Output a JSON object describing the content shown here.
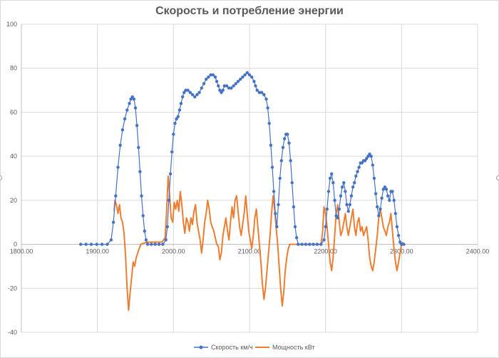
{
  "chart_data": {
    "type": "scatter",
    "title": "Скорость и потребление энергии",
    "xlim": [
      1800,
      2400
    ],
    "ylim": [
      -40,
      100
    ],
    "x_ticks": [
      1800,
      1900,
      2000,
      2100,
      2200,
      2300,
      2400
    ],
    "x_tick_labels": [
      "1800.00",
      "1900.00",
      "2000.00",
      "2100.00",
      "2200.00",
      "2300.00",
      "2400.00"
    ],
    "y_ticks": [
      -40,
      -20,
      0,
      20,
      40,
      60,
      80,
      100
    ],
    "y_tick_labels": [
      "-40",
      "-20",
      "0",
      "20",
      "40",
      "60",
      "80",
      "100"
    ],
    "grid": "vertical and horizontal major gridlines",
    "legend_position": "bottom",
    "series": [
      {
        "name": "Скорость км/ч",
        "style": "line with markers",
        "color": "#4472C4",
        "points": [
          [
            1878,
            0
          ],
          [
            1885,
            0
          ],
          [
            1892,
            0
          ],
          [
            1899,
            0
          ],
          [
            1906,
            0
          ],
          [
            1913,
            0
          ],
          [
            1918,
            2
          ],
          [
            1921,
            10
          ],
          [
            1924,
            22
          ],
          [
            1927,
            35
          ],
          [
            1930,
            45
          ],
          [
            1933,
            52
          ],
          [
            1936,
            57
          ],
          [
            1939,
            61
          ],
          [
            1942,
            64
          ],
          [
            1944,
            66
          ],
          [
            1946,
            67
          ],
          [
            1948,
            66
          ],
          [
            1950,
            62
          ],
          [
            1952,
            54
          ],
          [
            1954,
            44
          ],
          [
            1956,
            33
          ],
          [
            1958,
            22
          ],
          [
            1960,
            13
          ],
          [
            1962,
            6
          ],
          [
            1964,
            2
          ],
          [
            1966,
            0
          ],
          [
            1971,
            0
          ],
          [
            1976,
            0
          ],
          [
            1981,
            0
          ],
          [
            1986,
            0
          ],
          [
            1990,
            2
          ],
          [
            1992,
            8
          ],
          [
            1994,
            20
          ],
          [
            1996,
            32
          ],
          [
            1998,
            42
          ],
          [
            2000,
            50
          ],
          [
            2002,
            55
          ],
          [
            2004,
            57
          ],
          [
            2006,
            58
          ],
          [
            2008,
            61
          ],
          [
            2010,
            64
          ],
          [
            2012,
            67
          ],
          [
            2014,
            69
          ],
          [
            2016,
            70
          ],
          [
            2019,
            70
          ],
          [
            2022,
            69
          ],
          [
            2025,
            68
          ],
          [
            2028,
            67
          ],
          [
            2031,
            68
          ],
          [
            2034,
            69
          ],
          [
            2037,
            71
          ],
          [
            2040,
            73
          ],
          [
            2043,
            75
          ],
          [
            2046,
            76
          ],
          [
            2049,
            77
          ],
          [
            2052,
            77
          ],
          [
            2055,
            76
          ],
          [
            2057,
            74
          ],
          [
            2059,
            72
          ],
          [
            2061,
            70
          ],
          [
            2063,
            69
          ],
          [
            2065,
            70
          ],
          [
            2067,
            72
          ],
          [
            2070,
            72
          ],
          [
            2073,
            71
          ],
          [
            2076,
            71
          ],
          [
            2079,
            72
          ],
          [
            2082,
            73
          ],
          [
            2085,
            74
          ],
          [
            2088,
            75
          ],
          [
            2091,
            76
          ],
          [
            2094,
            77
          ],
          [
            2097,
            78
          ],
          [
            2100,
            77
          ],
          [
            2103,
            76
          ],
          [
            2106,
            74
          ],
          [
            2108,
            72
          ],
          [
            2110,
            70
          ],
          [
            2113,
            69
          ],
          [
            2116,
            69
          ],
          [
            2119,
            68
          ],
          [
            2122,
            66
          ],
          [
            2124,
            62
          ],
          [
            2126,
            55
          ],
          [
            2128,
            45
          ],
          [
            2130,
            35
          ],
          [
            2132,
            24
          ],
          [
            2134,
            14
          ],
          [
            2136,
            8
          ],
          [
            2138,
            18
          ],
          [
            2140,
            30
          ],
          [
            2142,
            38
          ],
          [
            2144,
            44
          ],
          [
            2146,
            48
          ],
          [
            2148,
            50
          ],
          [
            2150,
            50
          ],
          [
            2152,
            46
          ],
          [
            2154,
            38
          ],
          [
            2156,
            28
          ],
          [
            2158,
            17
          ],
          [
            2160,
            8
          ],
          [
            2162,
            3
          ],
          [
            2164,
            0
          ],
          [
            2169,
            0
          ],
          [
            2174,
            0
          ],
          [
            2179,
            0
          ],
          [
            2184,
            0
          ],
          [
            2189,
            0
          ],
          [
            2194,
            0
          ],
          [
            2198,
            2
          ],
          [
            2200,
            8
          ],
          [
            2202,
            16
          ],
          [
            2204,
            24
          ],
          [
            2206,
            30
          ],
          [
            2208,
            32
          ],
          [
            2210,
            28
          ],
          [
            2212,
            20
          ],
          [
            2214,
            13
          ],
          [
            2216,
            12
          ],
          [
            2218,
            16
          ],
          [
            2220,
            22
          ],
          [
            2222,
            26
          ],
          [
            2224,
            28
          ],
          [
            2226,
            24
          ],
          [
            2228,
            18
          ],
          [
            2230,
            15
          ],
          [
            2232,
            18
          ],
          [
            2234,
            22
          ],
          [
            2236,
            26
          ],
          [
            2238,
            28
          ],
          [
            2240,
            31
          ],
          [
            2242,
            33
          ],
          [
            2244,
            35
          ],
          [
            2246,
            37
          ],
          [
            2248,
            37
          ],
          [
            2250,
            38
          ],
          [
            2252,
            38
          ],
          [
            2254,
            39
          ],
          [
            2256,
            40
          ],
          [
            2258,
            41
          ],
          [
            2260,
            40
          ],
          [
            2262,
            36
          ],
          [
            2264,
            30
          ],
          [
            2266,
            23
          ],
          [
            2268,
            17
          ],
          [
            2270,
            13
          ],
          [
            2272,
            16
          ],
          [
            2274,
            21
          ],
          [
            2276,
            25
          ],
          [
            2278,
            26
          ],
          [
            2280,
            25
          ],
          [
            2282,
            22
          ],
          [
            2284,
            20
          ],
          [
            2286,
            24
          ],
          [
            2288,
            24
          ],
          [
            2290,
            20
          ],
          [
            2292,
            14
          ],
          [
            2294,
            8
          ],
          [
            2296,
            4
          ],
          [
            2298,
            1
          ],
          [
            2300,
            0
          ],
          [
            2303,
            0
          ]
        ]
      },
      {
        "name": "Мощность кВт",
        "style": "line",
        "color": "#ED7D31",
        "points": [
          [
            1922,
            15
          ],
          [
            1923,
            20
          ],
          [
            1925,
            18
          ],
          [
            1927,
            14
          ],
          [
            1929,
            18
          ],
          [
            1931,
            12
          ],
          [
            1933,
            10
          ],
          [
            1935,
            5
          ],
          [
            1937,
            -5
          ],
          [
            1939,
            -20
          ],
          [
            1941,
            -30
          ],
          [
            1943,
            -22
          ],
          [
            1945,
            -15
          ],
          [
            1947,
            -8
          ],
          [
            1949,
            -10
          ],
          [
            1951,
            -6
          ],
          [
            1953,
            -4
          ],
          [
            1955,
            -2
          ],
          [
            1957,
            0
          ],
          [
            1965,
            1
          ],
          [
            1975,
            1
          ],
          [
            1985,
            1
          ],
          [
            1989,
            3
          ],
          [
            1991,
            15
          ],
          [
            1993,
            31
          ],
          [
            1995,
            22
          ],
          [
            1997,
            12
          ],
          [
            1999,
            10
          ],
          [
            2001,
            19
          ],
          [
            2003,
            16
          ],
          [
            2005,
            20
          ],
          [
            2007,
            15
          ],
          [
            2009,
            24
          ],
          [
            2011,
            18
          ],
          [
            2013,
            10
          ],
          [
            2015,
            5
          ],
          [
            2017,
            12
          ],
          [
            2019,
            10
          ],
          [
            2021,
            6
          ],
          [
            2023,
            12
          ],
          [
            2025,
            9
          ],
          [
            2027,
            15
          ],
          [
            2029,
            18
          ],
          [
            2031,
            10
          ],
          [
            2033,
            6
          ],
          [
            2035,
            2
          ],
          [
            2037,
            -4
          ],
          [
            2039,
            2
          ],
          [
            2041,
            10
          ],
          [
            2043,
            14
          ],
          [
            2045,
            20
          ],
          [
            2047,
            16
          ],
          [
            2049,
            10
          ],
          [
            2051,
            8
          ],
          [
            2053,
            6
          ],
          [
            2055,
            3
          ],
          [
            2057,
            0
          ],
          [
            2059,
            -1
          ],
          [
            2061,
            -7
          ],
          [
            2063,
            -4
          ],
          [
            2065,
            4
          ],
          [
            2067,
            8
          ],
          [
            2069,
            12
          ],
          [
            2071,
            6
          ],
          [
            2073,
            2
          ],
          [
            2075,
            10
          ],
          [
            2077,
            17
          ],
          [
            2079,
            12
          ],
          [
            2081,
            20
          ],
          [
            2083,
            22
          ],
          [
            2085,
            15
          ],
          [
            2087,
            8
          ],
          [
            2089,
            4
          ],
          [
            2091,
            9
          ],
          [
            2093,
            14
          ],
          [
            2095,
            22
          ],
          [
            2097,
            14
          ],
          [
            2099,
            6
          ],
          [
            2101,
            2
          ],
          [
            2103,
            -2
          ],
          [
            2105,
            4
          ],
          [
            2107,
            12
          ],
          [
            2109,
            16
          ],
          [
            2111,
            8
          ],
          [
            2113,
            0
          ],
          [
            2115,
            -8
          ],
          [
            2117,
            -18
          ],
          [
            2119,
            -25
          ],
          [
            2121,
            -20
          ],
          [
            2123,
            -12
          ],
          [
            2125,
            -4
          ],
          [
            2127,
            4
          ],
          [
            2129,
            14
          ],
          [
            2131,
            22
          ],
          [
            2133,
            16
          ],
          [
            2135,
            8
          ],
          [
            2137,
            0
          ],
          [
            2139,
            -10
          ],
          [
            2141,
            -20
          ],
          [
            2143,
            -28
          ],
          [
            2145,
            -22
          ],
          [
            2147,
            -12
          ],
          [
            2149,
            -6
          ],
          [
            2151,
            -2
          ],
          [
            2153,
            0
          ],
          [
            2160,
            0
          ],
          [
            2170,
            0
          ],
          [
            2180,
            0
          ],
          [
            2190,
            0
          ],
          [
            2194,
            0
          ],
          [
            2196,
            5
          ],
          [
            2198,
            17
          ],
          [
            2200,
            14
          ],
          [
            2202,
            8
          ],
          [
            2204,
            0
          ],
          [
            2206,
            -8
          ],
          [
            2208,
            -12
          ],
          [
            2210,
            -6
          ],
          [
            2212,
            4
          ],
          [
            2214,
            14
          ],
          [
            2216,
            18
          ],
          [
            2218,
            10
          ],
          [
            2220,
            4
          ],
          [
            2222,
            6
          ],
          [
            2224,
            10
          ],
          [
            2226,
            14
          ],
          [
            2228,
            8
          ],
          [
            2230,
            4
          ],
          [
            2232,
            8
          ],
          [
            2234,
            12
          ],
          [
            2236,
            16
          ],
          [
            2238,
            8
          ],
          [
            2240,
            4
          ],
          [
            2242,
            10
          ],
          [
            2244,
            12
          ],
          [
            2246,
            6
          ],
          [
            2248,
            8
          ],
          [
            2250,
            4
          ],
          [
            2252,
            6
          ],
          [
            2254,
            8
          ],
          [
            2256,
            2
          ],
          [
            2258,
            -6
          ],
          [
            2260,
            -10
          ],
          [
            2262,
            -12
          ],
          [
            2264,
            -8
          ],
          [
            2266,
            -2
          ],
          [
            2268,
            4
          ],
          [
            2270,
            12
          ],
          [
            2272,
            16
          ],
          [
            2274,
            12
          ],
          [
            2276,
            8
          ],
          [
            2278,
            6
          ],
          [
            2280,
            4
          ],
          [
            2282,
            8
          ],
          [
            2284,
            10
          ],
          [
            2286,
            14
          ],
          [
            2288,
            6
          ],
          [
            2290,
            -2
          ],
          [
            2292,
            -8
          ],
          [
            2294,
            -12
          ],
          [
            2296,
            -8
          ],
          [
            2298,
            -4
          ],
          [
            2300,
            0
          ],
          [
            2302,
            1
          ]
        ]
      }
    ]
  }
}
